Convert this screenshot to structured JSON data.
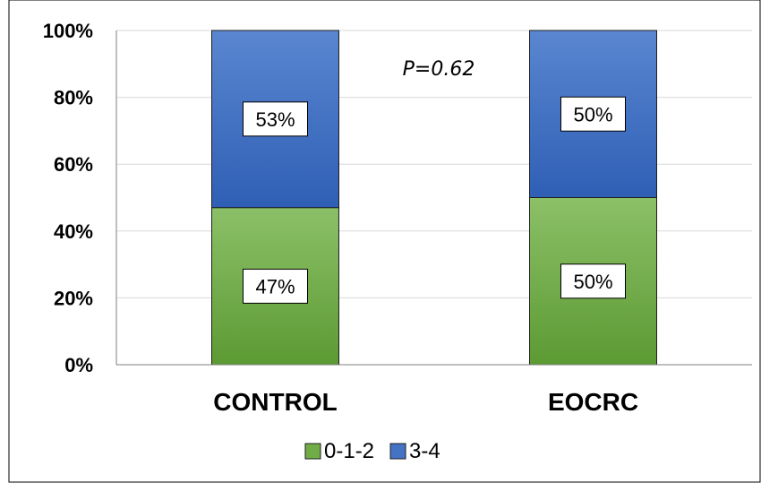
{
  "chart_data": {
    "type": "bar",
    "stacked": true,
    "title": "",
    "xlabel": "",
    "ylabel": "",
    "ylim": [
      0,
      100
    ],
    "y_ticks": [
      "0%",
      "20%",
      "40%",
      "60%",
      "80%",
      "100%"
    ],
    "categories": [
      "CONTROL",
      "EOCRC"
    ],
    "series": [
      {
        "name": "0-1-2",
        "values": [
          47,
          50
        ],
        "labels": [
          "47%",
          "50%"
        ],
        "color": "#70ad47"
      },
      {
        "name": "3-4",
        "values": [
          53,
          50
        ],
        "labels": [
          "53%",
          "50%"
        ],
        "color": "#4472c4"
      }
    ],
    "annotation": "P=0.62",
    "legend_position": "bottom",
    "grid": true
  }
}
